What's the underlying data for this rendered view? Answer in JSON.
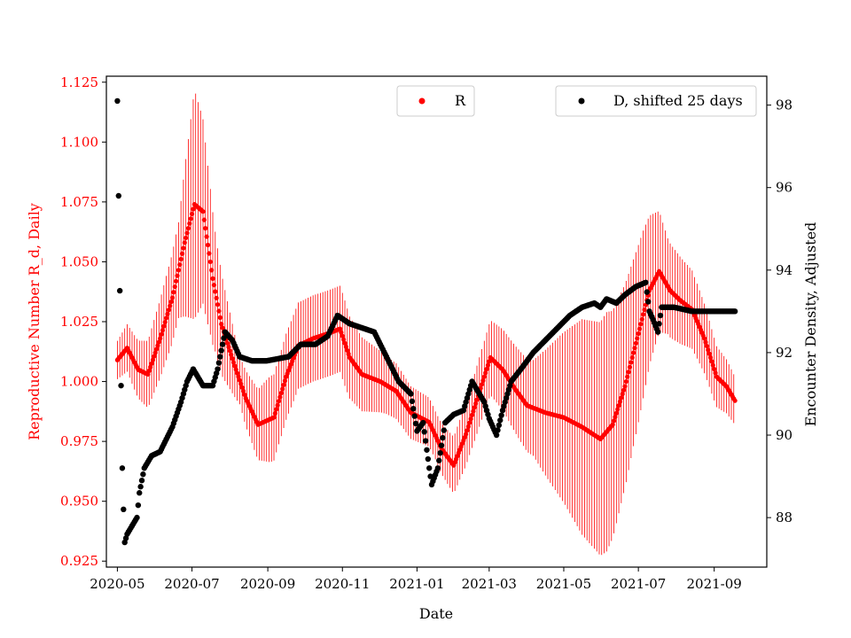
{
  "chart_data": {
    "type": "scatter",
    "title": "",
    "xlabel": "Date",
    "ylabel_left": "Reproductive Number R_d, Daily",
    "ylabel_right": "Encounter Density, Adjusted",
    "colors": {
      "R": "#ff0000",
      "D": "#000000"
    },
    "x_ticks": [
      "2020-05",
      "2020-07",
      "2020-09",
      "2020-11",
      "2021-01",
      "2021-03",
      "2021-05",
      "2021-07",
      "2021-09"
    ],
    "x_tick_days": [
      0,
      61,
      123,
      184,
      245,
      304,
      365,
      426,
      488
    ],
    "x_range_days": [
      -9,
      531
    ],
    "y_left_ticks": [
      "0.925",
      "0.950",
      "0.975",
      "1.000",
      "1.025",
      "1.050",
      "1.075",
      "1.100",
      "1.125"
    ],
    "y_left_range": [
      0.9225,
      1.1275
    ],
    "y_right_ticks": [
      "88",
      "90",
      "92",
      "94",
      "96",
      "98"
    ],
    "y_right_range": [
      86.8,
      98.7
    ],
    "legends": [
      {
        "label": "R",
        "series": "R"
      },
      {
        "label": "D, shifted 25 days",
        "series": "D"
      }
    ],
    "series_R": {
      "name": "R",
      "axis": "left",
      "marker": "dot",
      "error_bars": "vertical, alternating high/low bands around the points",
      "keypoints_day_value": [
        [
          0,
          1.009
        ],
        [
          8,
          1.014
        ],
        [
          17,
          1.005
        ],
        [
          25,
          1.003
        ],
        [
          35,
          1.018
        ],
        [
          45,
          1.035
        ],
        [
          55,
          1.058
        ],
        [
          63,
          1.074
        ],
        [
          70,
          1.071
        ],
        [
          78,
          1.043
        ],
        [
          85,
          1.024
        ],
        [
          95,
          1.008
        ],
        [
          105,
          0.993
        ],
        [
          115,
          0.982
        ],
        [
          128,
          0.985
        ],
        [
          138,
          1.002
        ],
        [
          148,
          1.015
        ],
        [
          160,
          1.018
        ],
        [
          172,
          1.02
        ],
        [
          182,
          1.022
        ],
        [
          190,
          1.01
        ],
        [
          200,
          1.003
        ],
        [
          215,
          1.0
        ],
        [
          228,
          0.996
        ],
        [
          240,
          0.987
        ],
        [
          255,
          0.983
        ],
        [
          265,
          0.972
        ],
        [
          275,
          0.965
        ],
        [
          285,
          0.978
        ],
        [
          295,
          0.994
        ],
        [
          305,
          1.01
        ],
        [
          315,
          1.005
        ],
        [
          325,
          0.997
        ],
        [
          335,
          0.99
        ],
        [
          350,
          0.987
        ],
        [
          365,
          0.985
        ],
        [
          380,
          0.981
        ],
        [
          395,
          0.976
        ],
        [
          405,
          0.982
        ],
        [
          415,
          0.998
        ],
        [
          425,
          1.018
        ],
        [
          435,
          1.038
        ],
        [
          443,
          1.046
        ],
        [
          452,
          1.038
        ],
        [
          460,
          1.034
        ],
        [
          470,
          1.03
        ],
        [
          480,
          1.018
        ],
        [
          490,
          1.002
        ],
        [
          498,
          0.998
        ],
        [
          505,
          0.992
        ]
      ],
      "error_halfwidth": [
        [
          0,
          0.008
        ],
        [
          50,
          0.02
        ],
        [
          63,
          0.048
        ],
        [
          80,
          0.025
        ],
        [
          100,
          0.01
        ],
        [
          125,
          0.018
        ],
        [
          185,
          0.018
        ],
        [
          220,
          0.012
        ],
        [
          260,
          0.01
        ],
        [
          300,
          0.015
        ],
        [
          340,
          0.02
        ],
        [
          380,
          0.045
        ],
        [
          400,
          0.05
        ],
        [
          430,
          0.035
        ],
        [
          450,
          0.02
        ],
        [
          505,
          0.01
        ]
      ]
    },
    "series_D": {
      "name": "D, shifted 25 days",
      "axis": "right",
      "marker": "dot",
      "keypoints_day_value": [
        [
          0,
          98.1
        ],
        [
          1,
          95.8
        ],
        [
          2,
          93.5
        ],
        [
          3,
          91.2
        ],
        [
          4,
          89.2
        ],
        [
          5,
          88.2
        ],
        [
          6,
          87.4
        ],
        [
          8,
          87.6
        ],
        [
          12,
          87.8
        ],
        [
          16,
          88.0
        ],
        [
          18,
          88.6
        ],
        [
          22,
          89.2
        ],
        [
          28,
          89.5
        ],
        [
          35,
          89.6
        ],
        [
          40,
          89.9
        ],
        [
          45,
          90.2
        ],
        [
          52,
          90.8
        ],
        [
          57,
          91.3
        ],
        [
          62,
          91.6
        ],
        [
          70,
          91.2
        ],
        [
          78,
          91.2
        ],
        [
          82,
          91.6
        ],
        [
          88,
          92.5
        ],
        [
          94,
          92.3
        ],
        [
          100,
          91.9
        ],
        [
          110,
          91.8
        ],
        [
          122,
          91.8
        ],
        [
          140,
          91.9
        ],
        [
          150,
          92.2
        ],
        [
          162,
          92.2
        ],
        [
          172,
          92.4
        ],
        [
          180,
          92.9
        ],
        [
          190,
          92.7
        ],
        [
          200,
          92.6
        ],
        [
          210,
          92.5
        ],
        [
          220,
          91.9
        ],
        [
          230,
          91.3
        ],
        [
          240,
          91.0
        ],
        [
          245,
          90.1
        ],
        [
          250,
          90.3
        ],
        [
          255,
          89.2
        ],
        [
          257,
          88.8
        ],
        [
          262,
          89.2
        ],
        [
          268,
          90.3
        ],
        [
          275,
          90.5
        ],
        [
          283,
          90.6
        ],
        [
          290,
          91.3
        ],
        [
          300,
          90.8
        ],
        [
          304,
          90.4
        ],
        [
          310,
          90.0
        ],
        [
          315,
          90.6
        ],
        [
          322,
          91.3
        ],
        [
          330,
          91.6
        ],
        [
          340,
          92.0
        ],
        [
          350,
          92.3
        ],
        [
          360,
          92.6
        ],
        [
          370,
          92.9
        ],
        [
          380,
          93.1
        ],
        [
          390,
          93.2
        ],
        [
          395,
          93.1
        ],
        [
          400,
          93.3
        ],
        [
          408,
          93.2
        ],
        [
          415,
          93.4
        ],
        [
          424,
          93.6
        ],
        [
          432,
          93.7
        ],
        [
          435,
          93.0
        ],
        [
          438,
          92.8
        ],
        [
          442,
          92.5
        ],
        [
          445,
          93.1
        ],
        [
          455,
          93.1
        ],
        [
          470,
          93.0
        ],
        [
          490,
          93.0
        ],
        [
          505,
          93.0
        ]
      ]
    }
  }
}
